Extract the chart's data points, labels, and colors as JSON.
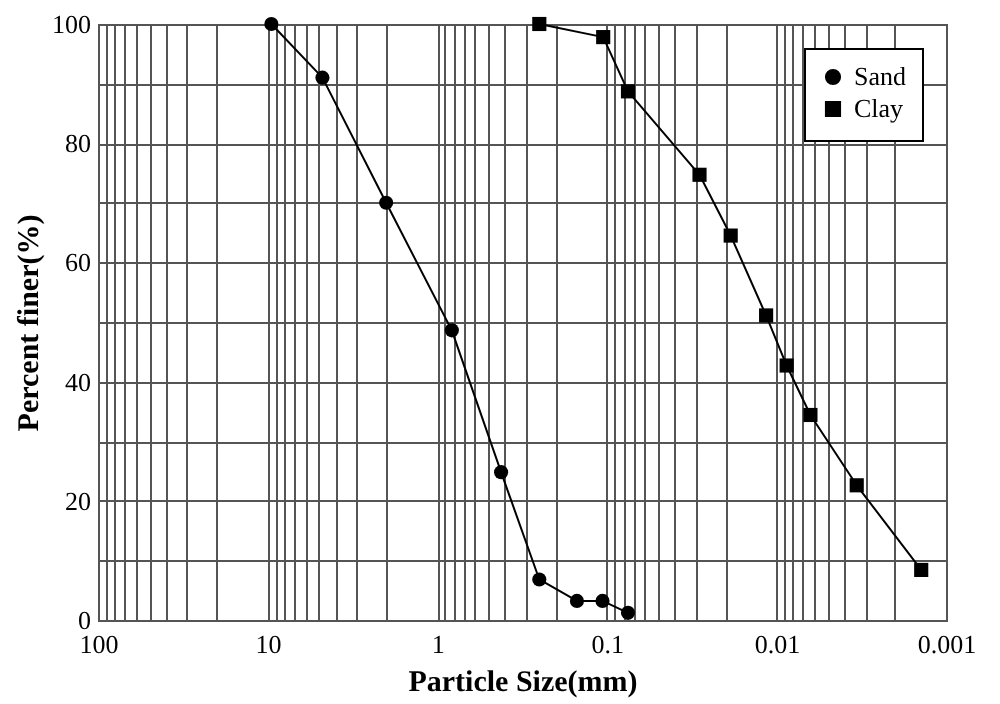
{
  "chart_data": {
    "type": "line",
    "xlabel": "Particle Size(mm)",
    "ylabel": "Percent finer(%)",
    "series": [
      {
        "name": "Sand",
        "color": "#000000",
        "marker": "circle",
        "x": [
          9.5,
          4.75,
          2.0,
          0.82,
          0.42,
          0.25,
          0.15,
          0.106,
          0.075
        ],
        "values": [
          100,
          91,
          70,
          48.6,
          24.8,
          6.8,
          3.2,
          3.2,
          1.2
        ]
      },
      {
        "name": "Clay",
        "color": "#000000",
        "marker": "square",
        "x": [
          0.25,
          0.105,
          0.075,
          0.0284,
          0.0186,
          0.0115,
          0.0087,
          0.0063,
          0.00336,
          0.0014
        ],
        "values": [
          100,
          97.8,
          88.7,
          74.7,
          64.5,
          51.1,
          42.7,
          34.4,
          22.6,
          8.4
        ]
      }
    ],
    "log": "x",
    "xlim": [
      100,
      0.001
    ],
    "xticks": [
      100,
      10,
      1,
      0.1,
      0.01,
      0.001
    ],
    "ylim": [
      0,
      100
    ],
    "yticks": [
      0,
      20,
      40,
      60,
      80,
      100
    ],
    "grid": true,
    "legend": "top right",
    "line_style": "solid"
  }
}
